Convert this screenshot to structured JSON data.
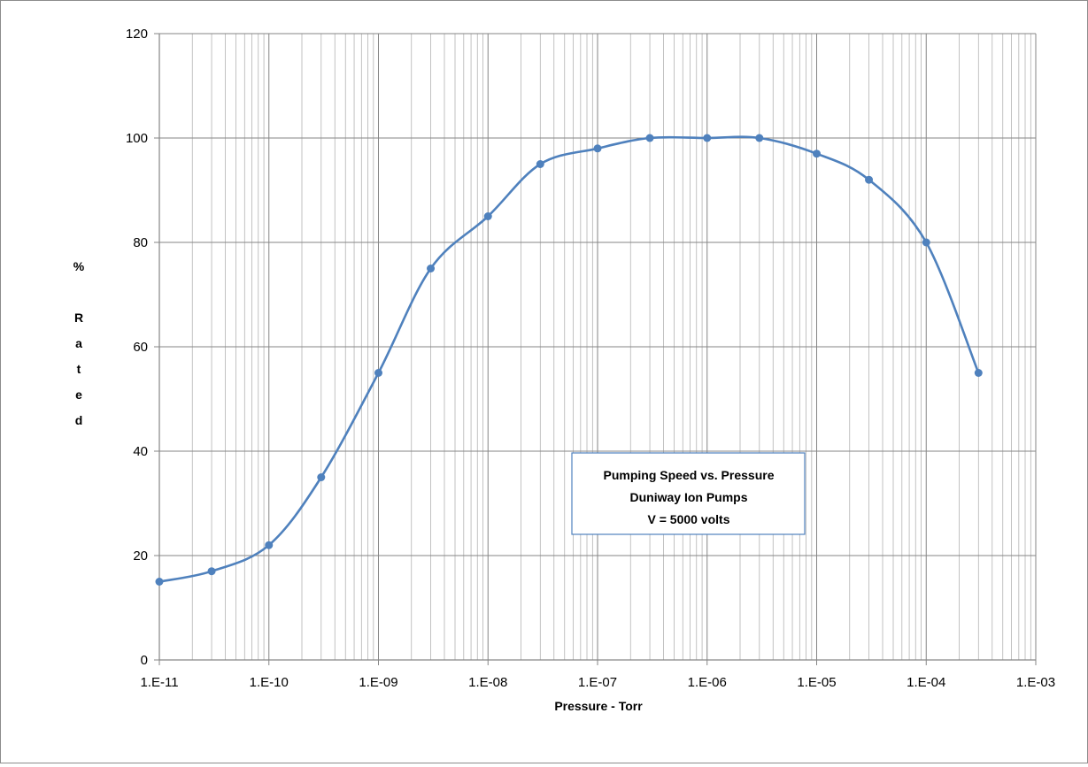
{
  "chart_data": {
    "type": "line",
    "xlabel": "Pressure - Torr",
    "ylabel": "% Rated",
    "xscale": "log",
    "xlim": [
      1e-11,
      0.001
    ],
    "ylim": [
      0,
      120
    ],
    "x_ticks": [
      "1.E-11",
      "1.E-10",
      "1.E-09",
      "1.E-08",
      "1.E-07",
      "1.E-06",
      "1.E-05",
      "1.E-04",
      "1.E-03"
    ],
    "y_ticks": [
      "0",
      "20",
      "40",
      "60",
      "80",
      "100",
      "120"
    ],
    "grid": true,
    "annotation": [
      "Pumping Speed vs. Pressure",
      "Duniway Ion Pumps",
      "V = 5000 volts"
    ],
    "series": [
      {
        "color": "#4f81bd",
        "x": [
          1e-11,
          3e-11,
          1e-10,
          3e-10,
          1e-09,
          3e-09,
          1e-08,
          3e-08,
          1e-07,
          3e-07,
          1e-06,
          3e-06,
          1e-05,
          3e-05,
          0.0001,
          0.0003
        ],
        "y": [
          15,
          17,
          22,
          35,
          55,
          75,
          85,
          95,
          98,
          100,
          100,
          100,
          97,
          92,
          80,
          55
        ]
      }
    ]
  }
}
